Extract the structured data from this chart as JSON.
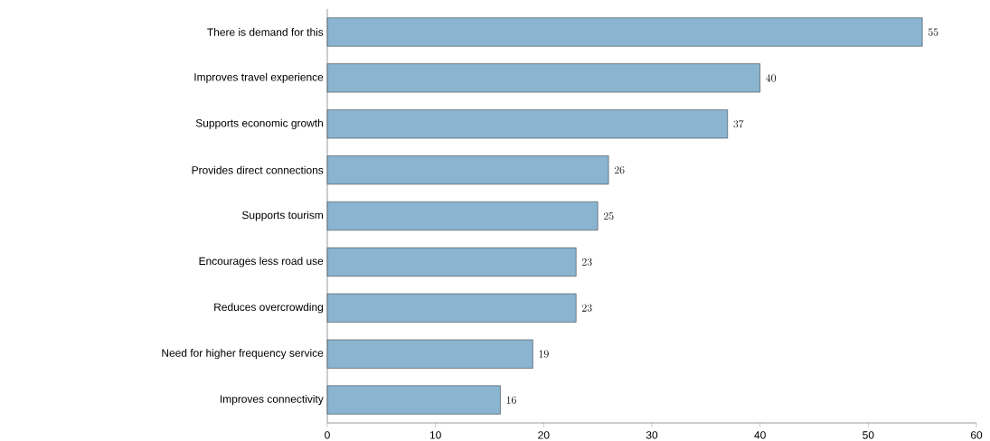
{
  "chart_data": {
    "type": "bar",
    "orientation": "horizontal",
    "categories": [
      "There is demand for this",
      "Improves travel experience",
      "Supports economic growth",
      "Provides direct connections",
      "Supports tourism",
      "Encourages less road use",
      "Reduces overcrowding",
      "Need for higher frequency service",
      "Improves connectivity"
    ],
    "values": [
      55,
      40,
      37,
      26,
      25,
      23,
      23,
      19,
      16
    ],
    "color": "#8ab4cf",
    "xlim": [
      0,
      60
    ],
    "xticks": [
      0,
      10,
      20,
      30,
      40,
      50,
      60
    ],
    "data_labels": true
  }
}
